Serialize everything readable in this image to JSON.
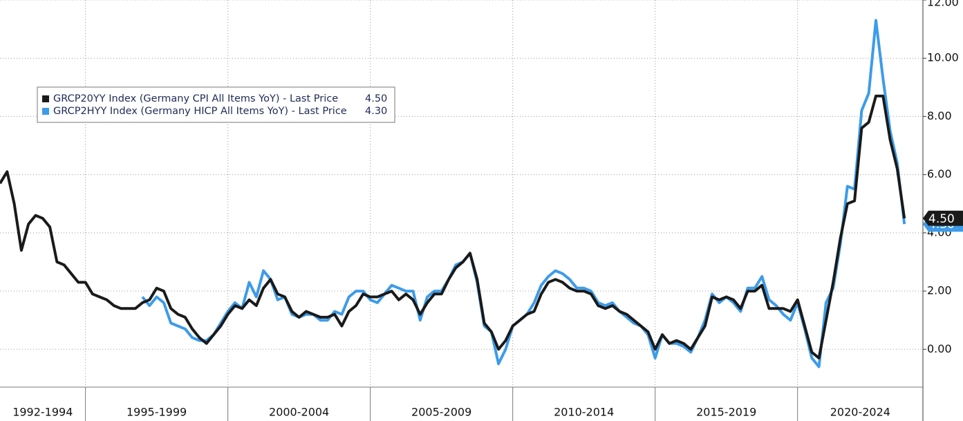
{
  "chart_data": {
    "type": "line",
    "x": [
      1992,
      1992.25,
      1992.5,
      1992.75,
      1993,
      1993.25,
      1993.5,
      1993.75,
      1994,
      1994.25,
      1994.5,
      1994.75,
      1995,
      1995.25,
      1995.5,
      1995.75,
      1996,
      1996.25,
      1996.5,
      1996.75,
      1997,
      1997.25,
      1997.5,
      1997.75,
      1998,
      1998.25,
      1998.5,
      1998.75,
      1999,
      1999.25,
      1999.5,
      1999.75,
      2000,
      2000.25,
      2000.5,
      2000.75,
      2001,
      2001.25,
      2001.5,
      2001.75,
      2002,
      2002.25,
      2002.5,
      2002.75,
      2003,
      2003.25,
      2003.5,
      2003.75,
      2004,
      2004.25,
      2004.5,
      2004.75,
      2005,
      2005.25,
      2005.5,
      2005.75,
      2006,
      2006.25,
      2006.5,
      2006.75,
      2007,
      2007.25,
      2007.5,
      2007.75,
      2008,
      2008.25,
      2008.5,
      2008.75,
      2009,
      2009.25,
      2009.5,
      2009.75,
      2010,
      2010.25,
      2010.5,
      2010.75,
      2011,
      2011.25,
      2011.5,
      2011.75,
      2012,
      2012.25,
      2012.5,
      2012.75,
      2013,
      2013.25,
      2013.5,
      2013.75,
      2014,
      2014.25,
      2014.5,
      2014.75,
      2015,
      2015.25,
      2015.5,
      2015.75,
      2016,
      2016.25,
      2016.5,
      2016.75,
      2017,
      2017.25,
      2017.5,
      2017.75,
      2018,
      2018.25,
      2018.5,
      2018.75,
      2019,
      2019.25,
      2019.5,
      2019.75,
      2020,
      2020.25,
      2020.5,
      2020.75,
      2021,
      2021.25,
      2021.5,
      2021.75,
      2022,
      2022.25,
      2022.5,
      2022.75,
      2023,
      2023.25,
      2023.5,
      2023.75
    ],
    "series": [
      {
        "name": "GRCP20YY Index (Germany CPI All Items YoY) - Last Price",
        "last_label": "4.50",
        "color": "#1a1a1a",
        "values": [
          5.7,
          6.1,
          5.0,
          3.4,
          4.3,
          4.6,
          4.5,
          4.2,
          3.0,
          2.9,
          2.6,
          2.3,
          2.3,
          1.9,
          1.8,
          1.7,
          1.5,
          1.4,
          1.4,
          1.4,
          1.6,
          1.7,
          2.1,
          2.0,
          1.4,
          1.2,
          1.1,
          0.7,
          0.4,
          0.2,
          0.5,
          0.8,
          1.2,
          1.5,
          1.4,
          1.7,
          1.5,
          2.1,
          2.4,
          1.9,
          1.8,
          1.3,
          1.1,
          1.3,
          1.2,
          1.1,
          1.1,
          1.2,
          0.8,
          1.3,
          1.5,
          1.9,
          1.8,
          1.8,
          1.9,
          2.0,
          1.7,
          1.9,
          1.7,
          1.2,
          1.6,
          1.9,
          1.9,
          2.4,
          2.8,
          3.0,
          3.3,
          2.4,
          0.9,
          0.6,
          0.0,
          0.3,
          0.8,
          1.0,
          1.2,
          1.3,
          1.9,
          2.3,
          2.4,
          2.3,
          2.1,
          2.0,
          2.0,
          1.9,
          1.5,
          1.4,
          1.5,
          1.3,
          1.2,
          1.0,
          0.8,
          0.6,
          0.0,
          0.5,
          0.2,
          0.3,
          0.2,
          0.0,
          0.4,
          0.8,
          1.8,
          1.7,
          1.8,
          1.7,
          1.4,
          2.0,
          2.0,
          2.2,
          1.4,
          1.4,
          1.4,
          1.3,
          1.7,
          0.8,
          -0.1,
          -0.3,
          1.0,
          2.3,
          3.8,
          5.0,
          5.1,
          7.6,
          7.8,
          8.7,
          8.7,
          7.2,
          6.2,
          4.5
        ]
      },
      {
        "name": "GRCP2HYY Index (Germany HICP All Items YoY) - Last Price",
        "last_label": "4.30",
        "color": "#3d9be9",
        "values": [
          null,
          null,
          null,
          null,
          null,
          null,
          null,
          null,
          null,
          null,
          null,
          null,
          null,
          null,
          null,
          null,
          null,
          null,
          null,
          null,
          1.8,
          1.5,
          1.8,
          1.6,
          0.9,
          0.8,
          0.7,
          0.4,
          0.3,
          0.3,
          0.5,
          0.9,
          1.3,
          1.6,
          1.4,
          2.3,
          1.8,
          2.7,
          2.4,
          1.7,
          1.8,
          1.2,
          1.1,
          1.2,
          1.2,
          1.0,
          1.0,
          1.3,
          1.2,
          1.8,
          2.0,
          2.0,
          1.7,
          1.6,
          1.9,
          2.2,
          2.1,
          2.0,
          2.0,
          1.0,
          1.8,
          2.0,
          2.0,
          2.4,
          2.9,
          3.0,
          3.3,
          2.3,
          0.8,
          0.6,
          -0.5,
          0.0,
          0.8,
          1.0,
          1.2,
          1.6,
          2.2,
          2.5,
          2.7,
          2.6,
          2.4,
          2.1,
          2.1,
          2.0,
          1.6,
          1.5,
          1.6,
          1.3,
          1.1,
          0.9,
          0.8,
          0.5,
          -0.3,
          0.5,
          0.2,
          0.2,
          0.1,
          -0.1,
          0.4,
          1.0,
          1.9,
          1.6,
          1.8,
          1.6,
          1.3,
          2.1,
          2.1,
          2.5,
          1.7,
          1.5,
          1.2,
          1.0,
          1.6,
          0.7,
          -0.3,
          -0.6,
          1.6,
          2.1,
          3.6,
          5.6,
          5.5,
          8.2,
          8.8,
          11.3,
          9.3,
          7.5,
          6.4,
          4.3
        ]
      }
    ],
    "xlim": [
      1992,
      2024.4
    ],
    "xticks": [
      1995,
      2000,
      2005,
      2010,
      2015,
      2020
    ],
    "period_labels": [
      "1992-1994",
      "1995-1999",
      "2000-2004",
      "2005-2009",
      "2010-2014",
      "2015-2019",
      "2020-2024"
    ],
    "ylim": [
      -1.3,
      12
    ],
    "yticks": [
      {
        "value": 0,
        "label": "0.00"
      },
      {
        "value": 2,
        "label": "2.00"
      },
      {
        "value": 4,
        "label": "4.00"
      },
      {
        "value": 6,
        "label": "6.00"
      },
      {
        "value": 8,
        "label": "8.00"
      },
      {
        "value": 10,
        "label": "10.00"
      },
      {
        "value": 12,
        "label": "12.00"
      }
    ],
    "grid": true,
    "legend": "upper left"
  }
}
